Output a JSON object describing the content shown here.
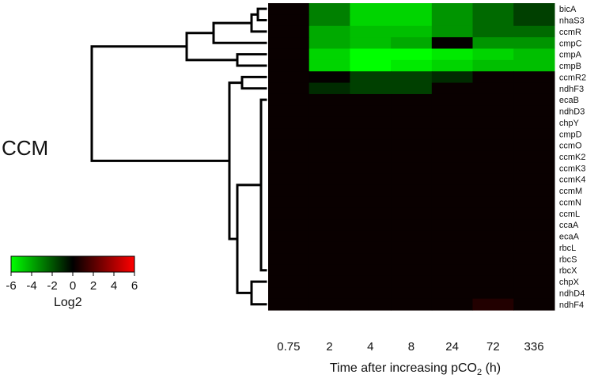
{
  "figure": {
    "side_label": "CCM"
  },
  "legend": {
    "title": "Log2",
    "ticks": [
      "-6",
      "-4",
      "-2",
      "0",
      "2",
      "4",
      "6"
    ],
    "colors": {
      "low": "#00ff00",
      "mid": "#000000",
      "high": "#ff0000"
    }
  },
  "chart_data": {
    "type": "heatmap",
    "xlabel": "Time after increasing pCO₂ (h)",
    "ylabel": "",
    "x_categories": [
      "0.75",
      "2",
      "4",
      "8",
      "24",
      "72",
      "336"
    ],
    "y_categories": [
      "bicA",
      "nhaS3",
      "ccmR",
      "cmpC",
      "cmpA",
      "cmpB",
      "ccmR2",
      "ndhF3",
      "ecaB",
      "ndhD3",
      "chpY",
      "cmpD",
      "ccmO",
      "ccmK2",
      "ccmK3",
      "ccmK4",
      "ccmM",
      "ccmN",
      "ccmL",
      "ccaA",
      "ecaA",
      "rbcL",
      "rbcS",
      "rbcX",
      "chpX",
      "ndhD4",
      "ndhF4"
    ],
    "color_scale": {
      "min": -6,
      "max": 6,
      "low": "#00ff00",
      "mid": "#000000",
      "high": "#ff0000"
    },
    "values": [
      [
        0.2,
        -3.0,
        -5.0,
        -5.0,
        -3.5,
        -2.5,
        -1.5
      ],
      [
        0.2,
        -3.0,
        -5.0,
        -5.0,
        -3.5,
        -2.5,
        -1.5
      ],
      [
        0.2,
        -4.0,
        -4.5,
        -4.5,
        -3.5,
        -2.5,
        -2.5
      ],
      [
        0.2,
        -4.0,
        -4.5,
        -4.0,
        0.1,
        -3.5,
        -3.5
      ],
      [
        0.2,
        -5.0,
        -6.0,
        -6.0,
        -5.5,
        -5.0,
        -4.5
      ],
      [
        0.2,
        -5.0,
        -6.0,
        -5.5,
        -5.0,
        -4.5,
        -4.5
      ],
      [
        0.2,
        0.1,
        -1.5,
        -1.5,
        -1.0,
        0.2,
        0.2
      ],
      [
        0.2,
        -1.0,
        -1.5,
        -1.5,
        0.2,
        0.2,
        0.2
      ],
      [
        0.2,
        0.2,
        0.2,
        0.2,
        0.2,
        0.2,
        0.2
      ],
      [
        0.2,
        0.2,
        0.2,
        0.2,
        0.2,
        0.2,
        0.2
      ],
      [
        0.2,
        0.2,
        0.2,
        0.2,
        0.2,
        0.2,
        0.2
      ],
      [
        0.2,
        0.2,
        0.2,
        0.2,
        0.2,
        0.2,
        0.2
      ],
      [
        0.2,
        0.2,
        0.2,
        0.2,
        0.2,
        0.2,
        0.2
      ],
      [
        0.2,
        0.2,
        0.2,
        0.2,
        0.2,
        0.2,
        0.2
      ],
      [
        0.2,
        0.2,
        0.2,
        0.2,
        0.2,
        0.2,
        0.2
      ],
      [
        0.2,
        0.2,
        0.2,
        0.2,
        0.2,
        0.2,
        0.2
      ],
      [
        0.2,
        0.2,
        0.2,
        0.2,
        0.2,
        0.2,
        0.2
      ],
      [
        0.2,
        0.2,
        0.2,
        0.2,
        0.2,
        0.2,
        0.2
      ],
      [
        0.2,
        0.2,
        0.2,
        0.2,
        0.2,
        0.2,
        0.2
      ],
      [
        0.2,
        0.2,
        0.2,
        0.2,
        0.2,
        0.2,
        0.2
      ],
      [
        0.2,
        0.2,
        0.2,
        0.2,
        0.2,
        0.2,
        0.2
      ],
      [
        0.2,
        0.2,
        0.2,
        0.2,
        0.2,
        0.2,
        0.2
      ],
      [
        0.2,
        0.2,
        0.2,
        0.2,
        0.2,
        0.2,
        0.2
      ],
      [
        0.2,
        0.2,
        0.2,
        0.2,
        0.2,
        0.2,
        0.2
      ],
      [
        0.2,
        0.2,
        0.2,
        0.2,
        0.2,
        0.2,
        0.2
      ],
      [
        0.2,
        0.2,
        0.2,
        0.2,
        0.2,
        0.2,
        0.2
      ],
      [
        0.2,
        0.2,
        0.2,
        0.2,
        0.2,
        0.8,
        0.2
      ]
    ]
  }
}
